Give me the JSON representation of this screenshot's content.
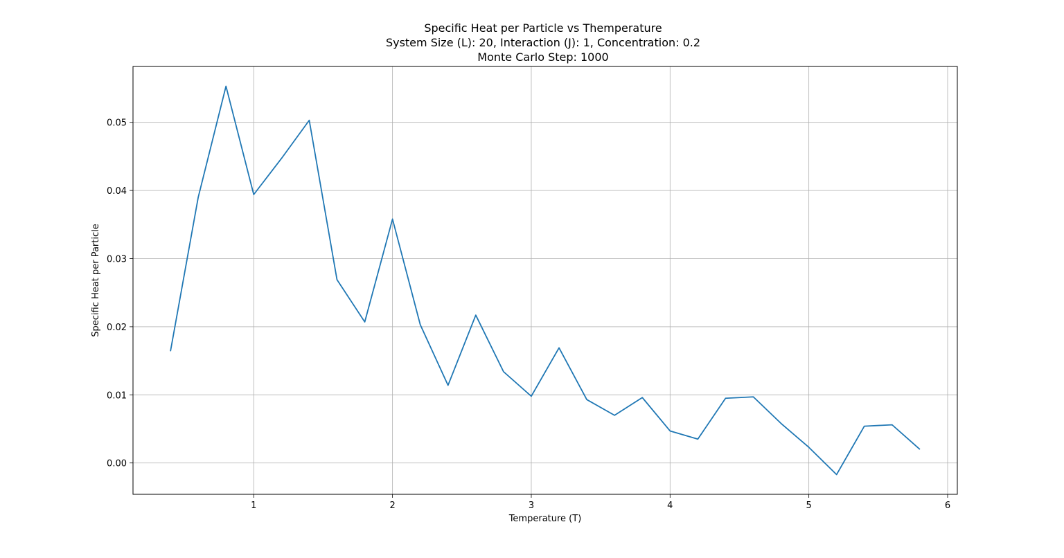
{
  "chart_data": {
    "type": "line",
    "title": "Specific Heat per Particle vs Themperature",
    "subtitle_lines": [
      "System Size (L): 20, Interaction (J): 1, Concentration: 0.2",
      "Monte Carlo Step: 1000"
    ],
    "xlabel": "Temperature (T)",
    "ylabel": "Specific Heat per Particle",
    "xlim": [
      0.13,
      6.07
    ],
    "ylim": [
      -0.0046,
      0.0582
    ],
    "xticks": [
      1,
      2,
      3,
      4,
      5,
      6
    ],
    "xtick_labels": [
      "1",
      "2",
      "3",
      "4",
      "5",
      "6"
    ],
    "yticks": [
      0.0,
      0.01,
      0.02,
      0.03,
      0.04,
      0.05
    ],
    "ytick_labels": [
      "0.00",
      "0.01",
      "0.02",
      "0.03",
      "0.04",
      "0.05"
    ],
    "grid": true,
    "line_color": "#1f77b4",
    "series": [
      {
        "x": [
          0.4,
          0.6,
          0.8,
          1.0,
          1.2,
          1.4,
          1.6,
          1.8,
          2.0,
          2.2,
          2.4,
          2.6,
          2.8,
          3.0,
          3.2,
          3.4,
          3.6,
          3.8,
          4.0,
          4.2,
          4.4,
          4.6,
          4.8,
          5.0,
          5.2,
          5.4,
          5.6,
          5.8
        ],
        "y": [
          0.0164,
          0.039,
          0.0553,
          0.0394,
          0.0447,
          0.0503,
          0.0269,
          0.0207,
          0.0358,
          0.0203,
          0.0114,
          0.0217,
          0.0134,
          0.0098,
          0.0169,
          0.0093,
          0.007,
          0.0096,
          0.0047,
          0.0035,
          0.0095,
          0.0097,
          0.0058,
          0.0023,
          -0.0017,
          0.0054,
          0.0056,
          0.002
        ]
      }
    ]
  }
}
